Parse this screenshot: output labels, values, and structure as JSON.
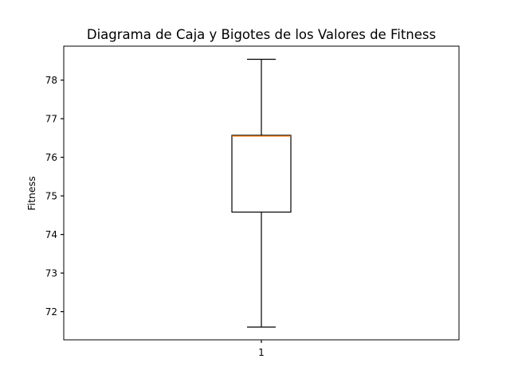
{
  "chart_data": {
    "type": "box",
    "title": "Diagrama de Caja y Bigotes de los Valores de Fitness",
    "xlabel": "",
    "ylabel": "Fitness",
    "categories": [
      "1"
    ],
    "ylim": [
      71.27,
      78.88
    ],
    "yticks": [
      72,
      73,
      74,
      75,
      76,
      77,
      78
    ],
    "ytick_labels": [
      "72",
      "73",
      "74",
      "75",
      "76",
      "77",
      "78"
    ],
    "boxes": [
      {
        "category": "1",
        "whisker_low": 71.6,
        "q1": 74.58,
        "median": 76.55,
        "q3": 76.57,
        "whisker_high": 78.54
      }
    ],
    "grid": false,
    "legend": "none",
    "colors": {
      "box": "#000000",
      "median": "#ff7f0e",
      "axes": "#000000",
      "background": "#ffffff"
    }
  }
}
